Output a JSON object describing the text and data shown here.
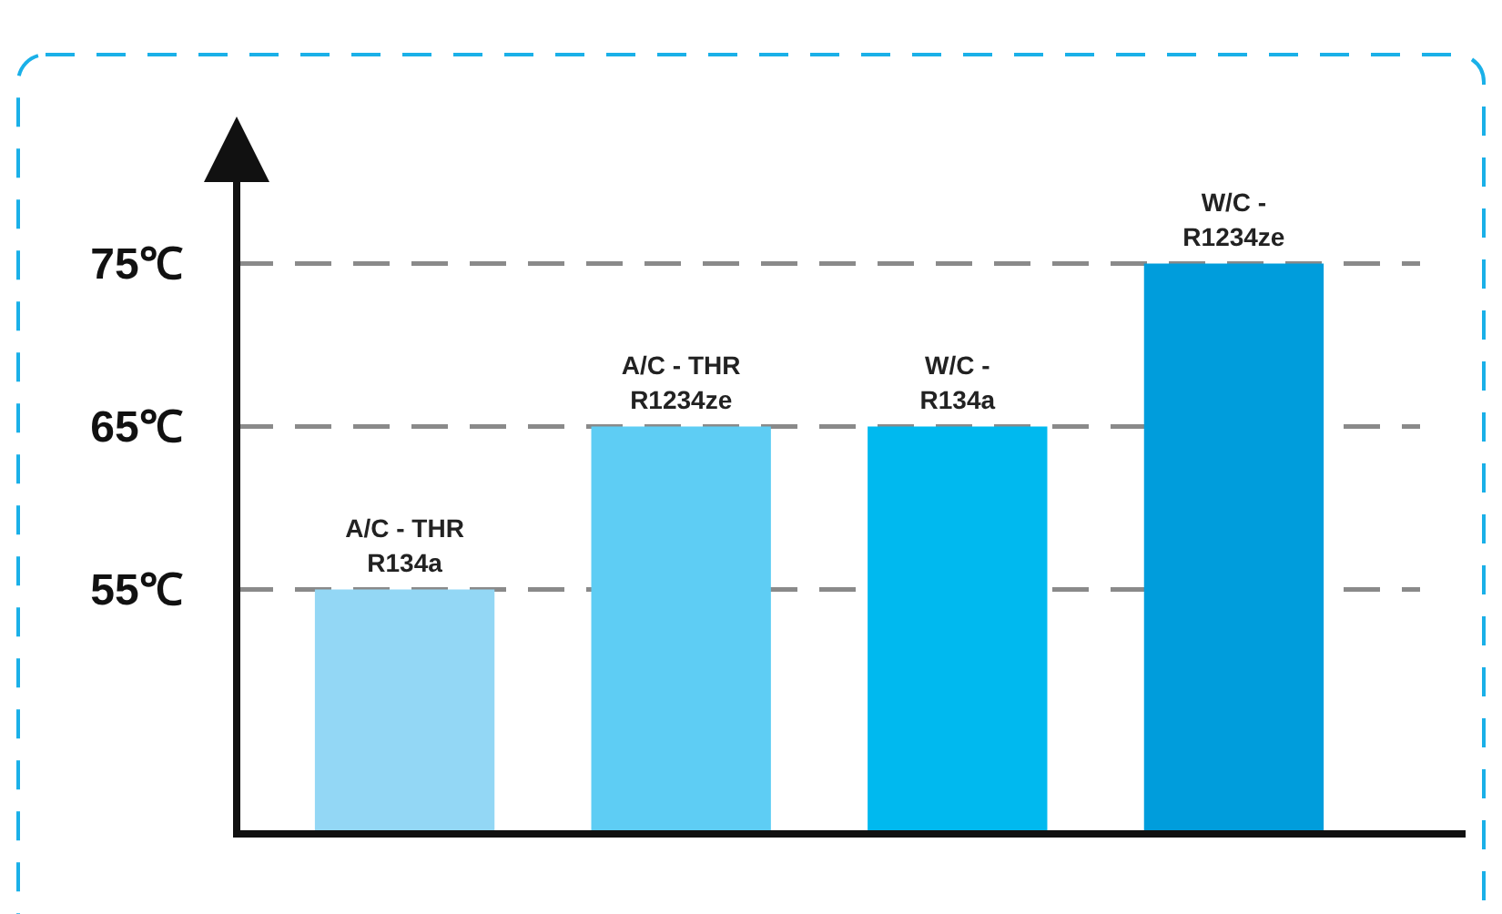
{
  "chart_data": {
    "type": "bar",
    "categories": [
      "A/C - THR R134a",
      "A/C - THR R1234ze",
      "W/C - R134a",
      "W/C - R1234ze"
    ],
    "values": [
      55,
      65,
      65,
      75
    ],
    "colors": [
      "#93d7f5",
      "#5ecdf4",
      "#00b9ef",
      "#009ddc"
    ],
    "ylim": [
      40,
      80
    ],
    "yticks": [
      {
        "value": 55,
        "label": "55℃"
      },
      {
        "value": 65,
        "label": "65℃"
      },
      {
        "value": 75,
        "label": "75℃"
      }
    ],
    "grid": "y"
  }
}
